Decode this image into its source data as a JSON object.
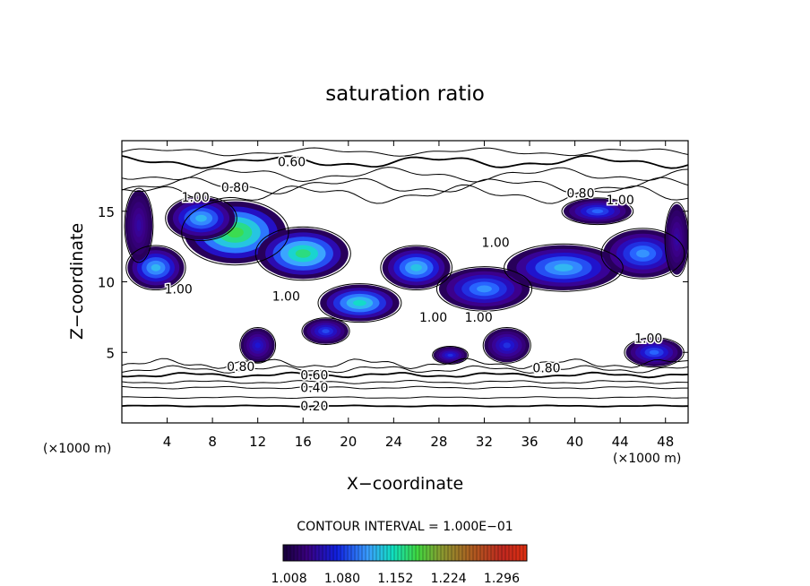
{
  "chart_data": {
    "type": "heatmap",
    "title": "saturation ratio",
    "xlabel": "X−coordinate",
    "ylabel": "Z−coordinate",
    "x_unit_left": "(×1000 m)",
    "x_unit_right": "(×1000 m)",
    "xlim": [
      0,
      50
    ],
    "ylim": [
      0,
      20
    ],
    "xticks": [
      4,
      8,
      12,
      16,
      20,
      24,
      28,
      32,
      36,
      40,
      44,
      48
    ],
    "yticks": [
      5,
      10,
      15
    ],
    "contour_interval_label": "CONTOUR INTERVAL = 1.000E−01",
    "contour_interval": 0.1,
    "colorbar_ticks": [
      1.008,
      1.08,
      1.152,
      1.224,
      1.296
    ],
    "colorbar_tick_labels": [
      "1.008",
      "1.080",
      "1.152",
      "1.224",
      "1.296"
    ],
    "colorbar_range": [
      1.0,
      1.33
    ],
    "contour_labels": [
      {
        "text": "0.60",
        "x": 15.0,
        "z": 18.5
      },
      {
        "text": "0.80",
        "x": 10.0,
        "z": 16.7
      },
      {
        "text": "0.80",
        "x": 40.5,
        "z": 16.3
      },
      {
        "text": "1.00",
        "x": 6.5,
        "z": 16.0
      },
      {
        "text": "1.00",
        "x": 44.0,
        "z": 15.8
      },
      {
        "text": "1.00",
        "x": 33.0,
        "z": 12.8
      },
      {
        "text": "1.00",
        "x": 5.0,
        "z": 9.5
      },
      {
        "text": "1.00",
        "x": 14.5,
        "z": 9.0
      },
      {
        "text": "1.00",
        "x": 27.5,
        "z": 7.5
      },
      {
        "text": "1.00",
        "x": 31.5,
        "z": 7.5
      },
      {
        "text": "1.00",
        "x": 46.5,
        "z": 6.0
      },
      {
        "text": "0.80",
        "x": 10.5,
        "z": 4.0
      },
      {
        "text": "0.80",
        "x": 37.5,
        "z": 3.9
      },
      {
        "text": "0.60",
        "x": 17.0,
        "z": 3.4
      },
      {
        "text": "0.40",
        "x": 17.0,
        "z": 2.5
      },
      {
        "text": "0.20",
        "x": 17.0,
        "z": 1.2
      }
    ],
    "supersaturated_regions": [
      {
        "x": 10,
        "z": 13.5,
        "rx": 4.5,
        "rz": 2.2,
        "peak": 1.22
      },
      {
        "x": 16,
        "z": 12.0,
        "rx": 4.0,
        "rz": 1.8,
        "peak": 1.18
      },
      {
        "x": 7,
        "z": 14.5,
        "rx": 3.0,
        "rz": 1.5,
        "peak": 1.12
      },
      {
        "x": 3,
        "z": 11.0,
        "rx": 2.5,
        "rz": 1.5,
        "peak": 1.12
      },
      {
        "x": 21,
        "z": 8.5,
        "rx": 3.5,
        "rz": 1.3,
        "peak": 1.15
      },
      {
        "x": 26,
        "z": 11.0,
        "rx": 3.0,
        "rz": 1.5,
        "peak": 1.13
      },
      {
        "x": 32,
        "z": 9.5,
        "rx": 4.0,
        "rz": 1.5,
        "peak": 1.1
      },
      {
        "x": 39,
        "z": 11.0,
        "rx": 5.0,
        "rz": 1.6,
        "peak": 1.12
      },
      {
        "x": 46,
        "z": 12.0,
        "rx": 3.5,
        "rz": 1.7,
        "peak": 1.1
      },
      {
        "x": 42,
        "z": 15.0,
        "rx": 3.0,
        "rz": 0.9,
        "peak": 1.08
      },
      {
        "x": 12,
        "z": 5.5,
        "rx": 1.5,
        "rz": 1.2,
        "peak": 1.05
      },
      {
        "x": 34,
        "z": 5.5,
        "rx": 2.0,
        "rz": 1.2,
        "peak": 1.06
      },
      {
        "x": 47,
        "z": 5.0,
        "rx": 2.5,
        "rz": 1.0,
        "peak": 1.08
      },
      {
        "x": 29,
        "z": 4.8,
        "rx": 1.5,
        "rz": 0.6,
        "peak": 1.06
      },
      {
        "x": 18,
        "z": 6.5,
        "rx": 2.0,
        "rz": 0.9,
        "peak": 1.07
      },
      {
        "x": 1.5,
        "z": 14.0,
        "rx": 1.2,
        "rz": 2.5,
        "peak": 1.03
      },
      {
        "x": 49,
        "z": 13.0,
        "rx": 1.0,
        "rz": 2.5,
        "peak": 1.03
      }
    ]
  }
}
